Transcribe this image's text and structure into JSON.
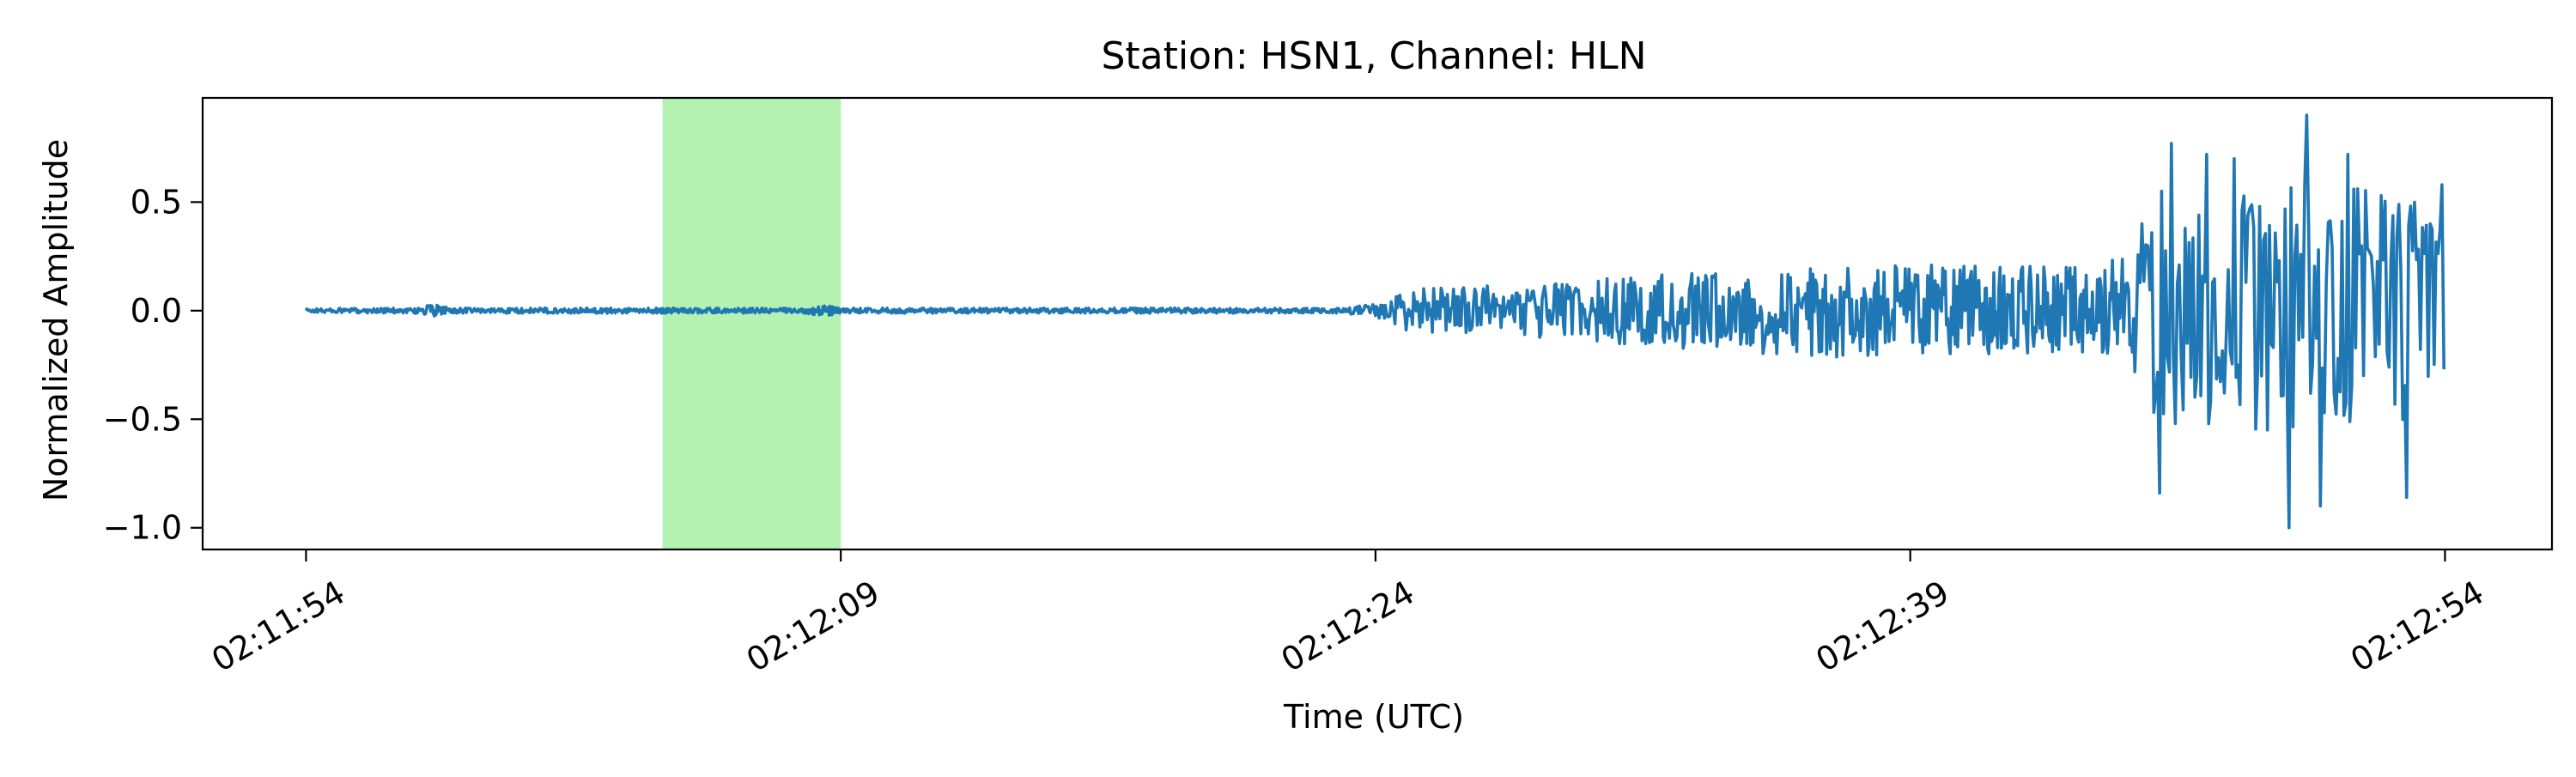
{
  "chart_data": {
    "type": "line",
    "title": "Station: HSN1, Channel: HLN",
    "xlabel": "Time (UTC)",
    "ylabel": "Normalized Amplitude",
    "x_unit": "seconds",
    "xlim": [
      -2.9,
      63.0
    ],
    "ylim": [
      -1.1,
      0.98
    ],
    "x_ticks": [
      {
        "value": 0,
        "label": "02:11:54"
      },
      {
        "value": 15,
        "label": "02:12:09"
      },
      {
        "value": 30,
        "label": "02:12:24"
      },
      {
        "value": 45,
        "label": "02:12:39"
      },
      {
        "value": 60,
        "label": "02:12:54"
      }
    ],
    "y_ticks": [
      {
        "value": 0.5,
        "label": "0.5"
      },
      {
        "value": 0.0,
        "label": "0.0"
      },
      {
        "value": -0.5,
        "label": "−0.5"
      },
      {
        "value": -1.0,
        "label": "−1.0"
      }
    ],
    "highlight": {
      "start": 10.0,
      "end": 15.0,
      "color": "#b3f2b0"
    },
    "grid": false,
    "series": [
      {
        "color": "#1f77b4",
        "envelope": [
          {
            "t": 0.0,
            "amp": 0.01
          },
          {
            "t": 3.0,
            "amp": 0.012
          },
          {
            "t": 3.5,
            "amp": 0.03
          },
          {
            "t": 4.2,
            "amp": 0.012
          },
          {
            "t": 14.0,
            "amp": 0.012
          },
          {
            "t": 14.5,
            "amp": 0.025
          },
          {
            "t": 15.2,
            "amp": 0.012
          },
          {
            "t": 29.0,
            "amp": 0.012
          },
          {
            "t": 30.0,
            "amp": 0.03
          },
          {
            "t": 31.0,
            "amp": 0.1
          },
          {
            "t": 34.0,
            "amp": 0.12
          },
          {
            "t": 38.0,
            "amp": 0.17
          },
          {
            "t": 43.0,
            "amp": 0.22
          },
          {
            "t": 50.0,
            "amp": 0.2
          },
          {
            "t": 51.2,
            "amp": 0.26
          },
          {
            "t": 52.0,
            "amp": 0.55
          },
          {
            "t": 56.0,
            "amp": 0.6
          },
          {
            "t": 60.0,
            "amp": 0.5
          }
        ],
        "peaks": [
          {
            "t": 51.5,
            "y": 0.4
          },
          {
            "t": 51.9,
            "y": -0.38
          },
          {
            "t": 52.0,
            "y": -0.84
          },
          {
            "t": 52.3,
            "y": 0.77
          },
          {
            "t": 53.3,
            "y": 0.72
          },
          {
            "t": 54.1,
            "y": 0.7
          },
          {
            "t": 54.3,
            "y": 0.46
          },
          {
            "t": 55.0,
            "y": -0.55
          },
          {
            "t": 55.6,
            "y": -1.0
          },
          {
            "t": 56.1,
            "y": 0.9
          },
          {
            "t": 56.5,
            "y": -0.9
          },
          {
            "t": 57.3,
            "y": 0.72
          },
          {
            "t": 58.2,
            "y": 0.53
          },
          {
            "t": 58.9,
            "y": -0.86
          },
          {
            "t": 59.6,
            "y": 0.4
          },
          {
            "t": 59.9,
            "y": 0.58
          },
          {
            "t": 60.0,
            "y": -0.27
          }
        ]
      }
    ]
  }
}
